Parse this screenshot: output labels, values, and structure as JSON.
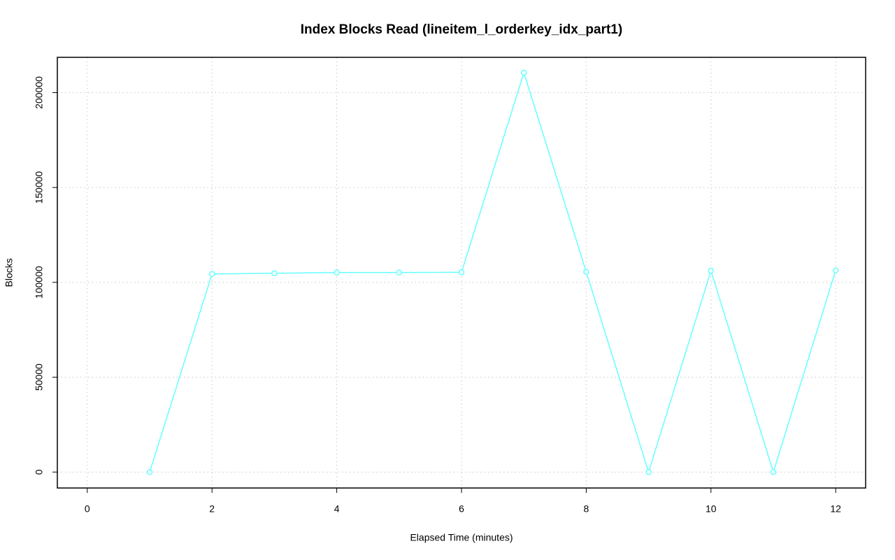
{
  "chart_data": {
    "type": "line",
    "title": "Index Blocks Read (lineitem_l_orderkey_idx_part1)",
    "x_label": "Elapsed Time (minutes)",
    "y_label": "Blocks",
    "x": [
      1,
      2,
      3,
      4,
      5,
      6,
      7,
      8,
      9,
      10,
      11,
      12
    ],
    "series": [
      {
        "name": "Blocks",
        "color": "#66ffff",
        "values": [
          0,
          104400,
          104800,
          105200,
          105200,
          105300,
          210500,
          105500,
          0,
          106100,
          0,
          106300
        ]
      }
    ],
    "xlim": [
      -0.48,
      12.48
    ],
    "ylim": [
      -8400,
      218600
    ],
    "xticks": [
      0,
      2,
      4,
      6,
      8,
      10,
      12
    ],
    "yticks": [
      0,
      50000,
      100000,
      150000,
      200000
    ],
    "grid": true
  }
}
